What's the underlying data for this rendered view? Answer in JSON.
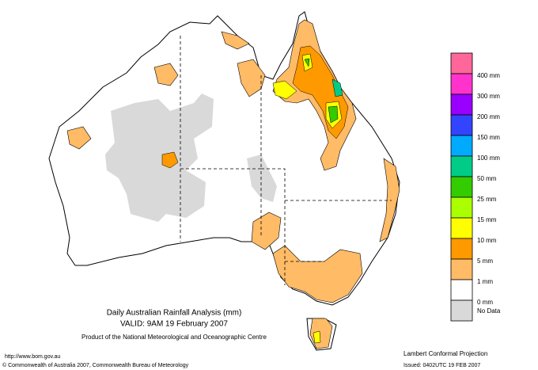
{
  "title": "Daily Australian Rainfall Analysis (mm)",
  "valid": "VALID: 9AM 19 February 2007",
  "product": "Product of the National Meteorological and Oceanographic Centre",
  "url": "http://www.bom.gov.au",
  "copyright": "© Commonwealth of Australia 2007, Commonwealth Bureau of Meteorology",
  "projection": "Lambert Conformal Projection",
  "issued": "Issued: 0402UTC 19 FEB 2007",
  "legend": {
    "items": [
      {
        "label": "400 mm",
        "color": "#ff6699"
      },
      {
        "label": "300 mm",
        "color": "#ff33cc"
      },
      {
        "label": "200 mm",
        "color": "#9900ff"
      },
      {
        "label": "150 mm",
        "color": "#3344ff"
      },
      {
        "label": "100 mm",
        "color": "#00aaff"
      },
      {
        "label": "50 mm",
        "color": "#00cc88"
      },
      {
        "label": "25 mm",
        "color": "#33cc00"
      },
      {
        "label": "15 mm",
        "color": "#aaff00"
      },
      {
        "label": "10 mm",
        "color": "#ffff00"
      },
      {
        "label": "5 mm",
        "color": "#ff9900"
      },
      {
        "label": "1 mm",
        "color": "#ffbb66"
      },
      {
        "label": "0 mm",
        "color": "#ffffff"
      },
      {
        "label": "No Data",
        "color": "#d9d9d9"
      }
    ]
  }
}
